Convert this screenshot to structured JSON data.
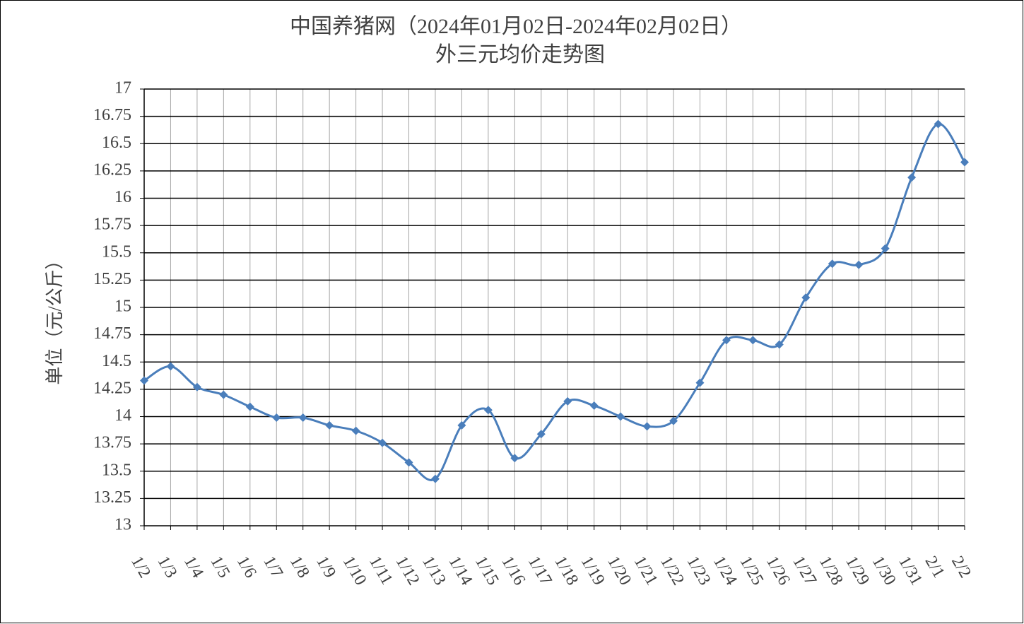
{
  "chart_data": {
    "type": "line",
    "title": [
      "中国养猪网（2024年01月02日-2024年02月02日）",
      "外三元均价走势图"
    ],
    "y_label": "单位（元/公斤）",
    "categories": [
      "1/2",
      "1/3",
      "1/4",
      "1/5",
      "1/6",
      "1/7",
      "1/8",
      "1/9",
      "1/10",
      "1/11",
      "1/12",
      "1/13",
      "1/14",
      "1/15",
      "1/16",
      "1/17",
      "1/18",
      "1/19",
      "1/20",
      "1/21",
      "1/22",
      "1/23",
      "1/24",
      "1/25",
      "1/26",
      "1/27",
      "1/28",
      "1/29",
      "1/30",
      "1/31",
      "2/1",
      "2/2"
    ],
    "series": [
      {
        "name": "外三元均价",
        "color": "#4a7ebb",
        "values": [
          14.33,
          14.46,
          14.27,
          14.2,
          14.09,
          13.99,
          13.99,
          13.92,
          13.87,
          13.76,
          13.58,
          13.43,
          13.92,
          14.06,
          13.62,
          13.84,
          14.14,
          14.1,
          14.0,
          13.91,
          13.96,
          14.31,
          14.7,
          14.7,
          14.66,
          15.09,
          15.4,
          15.39,
          15.54,
          16.19,
          16.68,
          16.33
        ]
      }
    ],
    "ylim": [
      13,
      17
    ],
    "yticks": [
      13,
      13.25,
      13.5,
      13.75,
      14,
      14.25,
      14.5,
      14.75,
      15,
      15.25,
      15.5,
      15.75,
      16,
      16.25,
      16.5,
      16.75,
      17
    ],
    "grid": true,
    "smooth": true
  }
}
